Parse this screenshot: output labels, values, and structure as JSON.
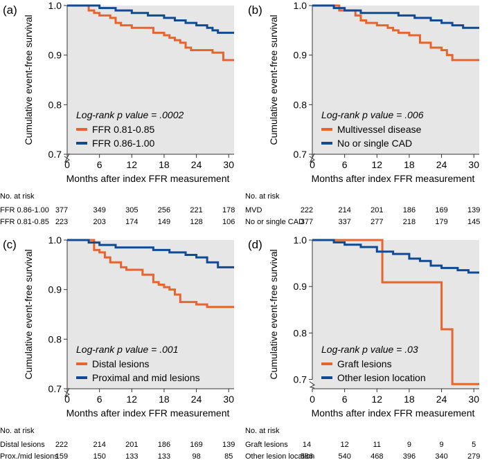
{
  "chart_data": [
    {
      "type": "line",
      "panel_label": "(a)",
      "xlabel": "Months after index FFR measurement",
      "ylabel": "Cumulative event-free survival",
      "xlim": [
        0,
        31
      ],
      "ylim": [
        0.7,
        1.0
      ],
      "xticks": [
        0,
        6,
        12,
        18,
        24,
        30
      ],
      "yticks": [
        "0.7",
        "0.8",
        "0.9",
        "1.0"
      ],
      "annotation": "Log-rank p value = .0002",
      "legend_position": "bottom-left",
      "series": [
        {
          "name": "FFR 0.81-0.85",
          "color": "#e8642c",
          "points": [
            [
              0,
              1.0
            ],
            [
              3,
              1.0
            ],
            [
              4,
              0.99
            ],
            [
              5,
              0.985
            ],
            [
              6,
              0.98
            ],
            [
              8,
              0.975
            ],
            [
              9,
              0.965
            ],
            [
              10,
              0.96
            ],
            [
              12,
              0.955
            ],
            [
              15,
              0.955
            ],
            [
              16,
              0.945
            ],
            [
              18,
              0.94
            ],
            [
              19,
              0.935
            ],
            [
              20,
              0.93
            ],
            [
              21,
              0.925
            ],
            [
              22,
              0.915
            ],
            [
              23,
              0.91
            ],
            [
              27,
              0.905
            ],
            [
              29,
              0.89
            ],
            [
              31,
              0.89
            ]
          ]
        },
        {
          "name": "FFR 0.86-1.00",
          "color": "#0f4a96",
          "points": [
            [
              0,
              1.0
            ],
            [
              5,
              1.0
            ],
            [
              6,
              0.995
            ],
            [
              9,
              0.99
            ],
            [
              12,
              0.985
            ],
            [
              15,
              0.98
            ],
            [
              18,
              0.975
            ],
            [
              20,
              0.97
            ],
            [
              22,
              0.965
            ],
            [
              24,
              0.96
            ],
            [
              26,
              0.955
            ],
            [
              27,
              0.95
            ],
            [
              28,
              0.945
            ],
            [
              31,
              0.945
            ]
          ]
        }
      ],
      "risk_table": {
        "title": "No. at risk",
        "rows": [
          {
            "label": "FFR 0.86-1.00",
            "values": [
              "377",
              "349",
              "305",
              "256",
              "221",
              "178"
            ]
          },
          {
            "label": "FFR 0.81-0.85",
            "values": [
              "223",
              "203",
              "174",
              "149",
              "128",
              "106"
            ]
          }
        ]
      }
    },
    {
      "type": "line",
      "panel_label": "(b)",
      "xlabel": "Months after index FFR measurement",
      "ylabel": "Cumulative event-free survival",
      "xlim": [
        0,
        31
      ],
      "ylim": [
        0.7,
        1.0
      ],
      "xticks": [
        0,
        6,
        12,
        18,
        24,
        30
      ],
      "yticks": [
        "0.7",
        "0.8",
        "0.9",
        "1.0"
      ],
      "annotation": "Log-rank p value = .006",
      "legend_position": "bottom-left",
      "series": [
        {
          "name": "Multivessel disease",
          "color": "#e8642c",
          "points": [
            [
              0,
              1.0
            ],
            [
              3,
              1.0
            ],
            [
              5,
              0.99
            ],
            [
              8,
              0.98
            ],
            [
              9,
              0.97
            ],
            [
              10,
              0.965
            ],
            [
              12,
              0.96
            ],
            [
              14,
              0.955
            ],
            [
              15,
              0.95
            ],
            [
              16,
              0.945
            ],
            [
              18,
              0.94
            ],
            [
              20,
              0.925
            ],
            [
              22,
              0.915
            ],
            [
              24,
              0.91
            ],
            [
              25,
              0.9
            ],
            [
              26,
              0.89
            ],
            [
              31,
              0.89
            ]
          ]
        },
        {
          "name": "No or single CAD",
          "color": "#0f4a96",
          "points": [
            [
              0,
              1.0
            ],
            [
              4,
              0.995
            ],
            [
              6,
              0.99
            ],
            [
              9,
              0.985
            ],
            [
              12,
              0.985
            ],
            [
              16,
              0.98
            ],
            [
              19,
              0.975
            ],
            [
              22,
              0.97
            ],
            [
              24,
              0.965
            ],
            [
              26,
              0.96
            ],
            [
              28,
              0.955
            ],
            [
              31,
              0.955
            ]
          ]
        }
      ],
      "risk_table": {
        "title": "No. at risk",
        "rows": [
          {
            "label": "MVD",
            "values": [
              "222",
              "214",
              "201",
              "186",
              "169",
              "139"
            ]
          },
          {
            "label": "No or single CAD",
            "values": [
              "377",
              "337",
              "277",
              "218",
              "179",
              "145"
            ]
          }
        ]
      }
    },
    {
      "type": "line",
      "panel_label": "(c)",
      "xlabel": "Months after index FFR measurement",
      "ylabel": "Cumulative event-free survival",
      "xlim": [
        0,
        31
      ],
      "ylim": [
        0.7,
        1.0
      ],
      "xticks": [
        0,
        6,
        12,
        18,
        24,
        30
      ],
      "yticks": [
        "0.7",
        "0.8",
        "0.9",
        "1.0"
      ],
      "annotation": "Log-rank p value = .001",
      "legend_position": "bottom-left",
      "series": [
        {
          "name": "Distal lesions",
          "color": "#e8642c",
          "points": [
            [
              0,
              1.0
            ],
            [
              4,
              1.0
            ],
            [
              5,
              0.98
            ],
            [
              6,
              0.975
            ],
            [
              7,
              0.965
            ],
            [
              8,
              0.955
            ],
            [
              10,
              0.945
            ],
            [
              11,
              0.94
            ],
            [
              13,
              0.94
            ],
            [
              14,
              0.93
            ],
            [
              16,
              0.915
            ],
            [
              17,
              0.91
            ],
            [
              18,
              0.905
            ],
            [
              19,
              0.9
            ],
            [
              20,
              0.89
            ],
            [
              21,
              0.875
            ],
            [
              23,
              0.875
            ],
            [
              24,
              0.87
            ],
            [
              26,
              0.865
            ],
            [
              31,
              0.865
            ]
          ]
        },
        {
          "name": "Proximal and mid lesions",
          "color": "#0f4a96",
          "points": [
            [
              0,
              1.0
            ],
            [
              4,
              0.995
            ],
            [
              6,
              0.99
            ],
            [
              9,
              0.985
            ],
            [
              12,
              0.985
            ],
            [
              16,
              0.98
            ],
            [
              19,
              0.975
            ],
            [
              22,
              0.97
            ],
            [
              24,
              0.965
            ],
            [
              26,
              0.955
            ],
            [
              28,
              0.945
            ],
            [
              31,
              0.945
            ]
          ]
        }
      ],
      "risk_table": {
        "title": "No. at risk",
        "rows": [
          {
            "label": "Distal lesions",
            "values": [
              "222",
              "214",
              "201",
              "186",
              "169",
              "139"
            ]
          },
          {
            "label": "Prox./mid lesions",
            "values": [
              "159",
              "150",
              "133",
              "133",
              "98",
              "85"
            ]
          }
        ]
      }
    },
    {
      "type": "line",
      "panel_label": "(d)",
      "xlabel": "Months after index FFR measurement",
      "ylabel": "Cumulative event-free survival",
      "xlim": [
        0,
        31
      ],
      "ylim": [
        0.68,
        1.0
      ],
      "xticks": [
        0,
        6,
        12,
        18,
        24,
        30
      ],
      "yticks": [
        "0.7",
        "0.8",
        "0.9",
        "1.0"
      ],
      "annotation": "Log-rank p value = .03",
      "legend_position": "bottom-left",
      "series": [
        {
          "name": "Graft lesions",
          "color": "#e8642c",
          "points": [
            [
              0,
              1.0
            ],
            [
              13,
              1.0
            ],
            [
              13,
              0.909
            ],
            [
              24,
              0.909
            ],
            [
              24,
              0.808
            ],
            [
              26,
              0.808
            ],
            [
              26,
              0.69
            ],
            [
              31,
              0.69
            ]
          ]
        },
        {
          "name": "Other lesion location",
          "color": "#0f4a96",
          "points": [
            [
              0,
              1.0
            ],
            [
              4,
              0.995
            ],
            [
              6,
              0.99
            ],
            [
              9,
              0.985
            ],
            [
              12,
              0.975
            ],
            [
              15,
              0.97
            ],
            [
              18,
              0.96
            ],
            [
              20,
              0.955
            ],
            [
              22,
              0.945
            ],
            [
              24,
              0.94
            ],
            [
              26,
              0.94
            ],
            [
              27,
              0.935
            ],
            [
              29,
              0.93
            ],
            [
              31,
              0.93
            ]
          ]
        }
      ],
      "risk_table": {
        "title": "No. at risk",
        "rows": [
          {
            "label": "Graft lesions",
            "values": [
              "14",
              "12",
              "11",
              "9",
              "9",
              "5"
            ]
          },
          {
            "label": "Other lesion location",
            "values": [
              "586",
              "540",
              "468",
              "396",
              "340",
              "279"
            ]
          }
        ]
      }
    }
  ]
}
